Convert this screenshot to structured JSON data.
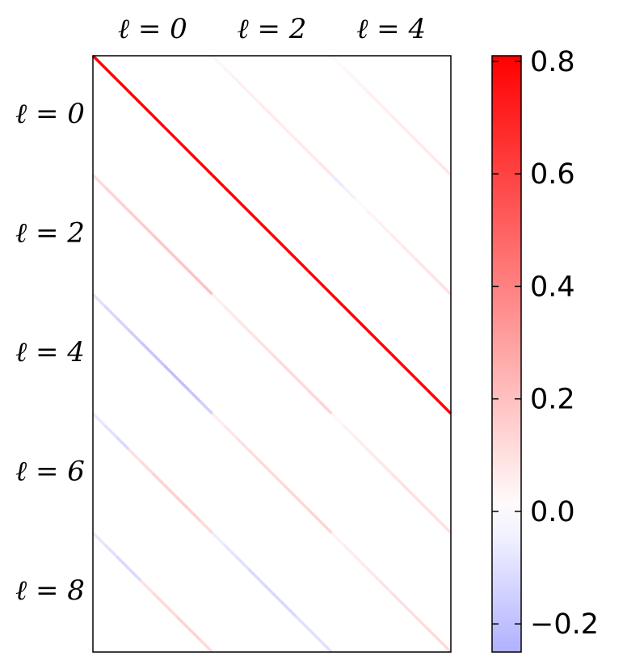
{
  "chart_data": {
    "type": "heatmap",
    "col_labels": [
      "ℓ = 0",
      "ℓ = 2",
      "ℓ = 4"
    ],
    "row_labels": [
      "ℓ = 0",
      "ℓ = 2",
      "ℓ = 4",
      "ℓ = 6",
      "ℓ = 8"
    ],
    "values": [
      [
        [
          0.8,
          0.8,
          0.8,
          0.8,
          0.8,
          0.8,
          0.8,
          0.8,
          0.8,
          0.8
        ],
        [
          0.03,
          0.04,
          0.05,
          0.05,
          0.06,
          0.06,
          0.06,
          0.07,
          0.07,
          0.08
        ],
        [
          0.02,
          0.03,
          0.04,
          0.05,
          0.05,
          0.06,
          0.06,
          0.07,
          0.07,
          0.08
        ]
      ],
      [
        [
          0.12,
          0.14,
          0.15,
          0.16,
          0.17,
          0.18,
          0.18,
          0.19,
          0.2,
          0.2
        ],
        [
          0.8,
          0.8,
          0.8,
          0.8,
          0.8,
          0.8,
          0.8,
          0.8,
          0.8,
          0.8
        ],
        [
          -0.06,
          -0.04,
          0.02,
          0.04,
          0.05,
          0.06,
          0.07,
          0.08,
          0.09,
          0.1
        ]
      ],
      [
        [
          -0.1,
          -0.12,
          -0.14,
          -0.16,
          -0.18,
          -0.18,
          -0.2,
          -0.2,
          -0.18,
          -0.15
        ],
        [
          0.05,
          0.07,
          0.08,
          0.09,
          0.1,
          0.11,
          0.12,
          0.12,
          0.13,
          0.14
        ],
        [
          0.8,
          0.8,
          0.8,
          0.8,
          0.8,
          0.8,
          0.8,
          0.8,
          0.8,
          0.8
        ]
      ],
      [
        [
          -0.08,
          -0.1,
          -0.12,
          0.1,
          0.12,
          0.14,
          0.15,
          0.16,
          0.15,
          0.12
        ],
        [
          0.06,
          0.08,
          0.1,
          0.11,
          0.12,
          0.12,
          0.13,
          0.13,
          0.14,
          0.14
        ],
        [
          0.03,
          0.05,
          0.06,
          0.07,
          0.08,
          0.09,
          0.1,
          0.1,
          0.1,
          0.1
        ]
      ],
      [
        [
          -0.08,
          -0.1,
          -0.12,
          -0.12,
          0.1,
          0.12,
          0.12,
          0.14,
          0.14,
          0.12
        ],
        [
          -0.06,
          -0.08,
          -0.1,
          -0.12,
          -0.12,
          -0.12,
          -0.12,
          -0.1,
          -0.1,
          -0.1
        ],
        [
          0.04,
          0.06,
          0.07,
          0.08,
          0.09,
          0.1,
          0.1,
          0.11,
          0.12,
          0.12
        ]
      ]
    ],
    "clim": [
      -0.25,
      0.81
    ],
    "cticks": [
      {
        "value": -0.2,
        "label": "−0.2"
      },
      {
        "value": 0,
        "label": "0.0"
      },
      0.2,
      0.4,
      0.6,
      0.8
    ]
  }
}
